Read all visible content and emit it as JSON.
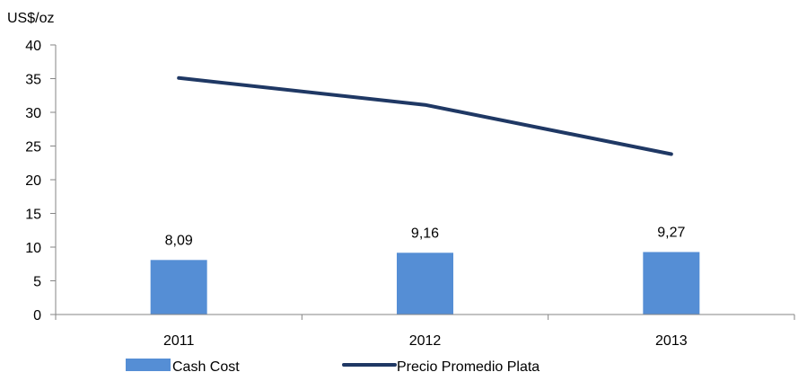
{
  "chart_data": {
    "type": "bar",
    "title": "",
    "ylabel": "US$/oz",
    "xlabel": "",
    "ylim": [
      0,
      40
    ],
    "yticks": [
      0,
      5,
      10,
      15,
      20,
      25,
      30,
      35,
      40
    ],
    "categories": [
      "2011",
      "2012",
      "2013"
    ],
    "grid": false,
    "legend_position": "bottom",
    "series": [
      {
        "name": "Cash Cost",
        "type": "bar",
        "color": "#558ED5",
        "values": [
          8.09,
          9.16,
          9.27
        ],
        "data_labels": [
          "8,09",
          "9,16",
          "9,27"
        ]
      },
      {
        "name": "Precio Promedio Plata",
        "type": "line",
        "color": "#1F3864",
        "values": [
          35.1,
          31.1,
          23.8
        ]
      }
    ]
  }
}
